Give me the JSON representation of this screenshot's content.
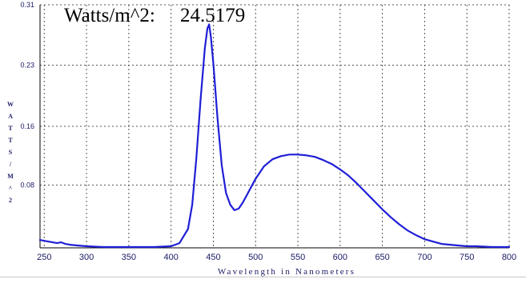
{
  "readout": {
    "label": "Watts/m^2:",
    "value": "24.5179"
  },
  "colors": {
    "curve": "#1f1fd6",
    "grid": "#555555",
    "axis": "#000000",
    "axis_text": "#1a1a66"
  },
  "chart_data": {
    "type": "line",
    "title": "",
    "xlabel": "Wavelength in Nanometers",
    "ylabel": "W A T T S / M ^ 2",
    "xlim": [
      245,
      800
    ],
    "ylim": [
      0,
      0.31
    ],
    "x_ticks": [
      250,
      300,
      350,
      400,
      450,
      500,
      550,
      600,
      650,
      700,
      750,
      800
    ],
    "y_ticks": [
      {
        "value": 0.08,
        "label": "0.08"
      },
      {
        "value": 0.155,
        "label": "0.16"
      },
      {
        "value": 0.233,
        "label": "0.23"
      },
      {
        "value": 0.31,
        "label": "0.31"
      }
    ],
    "grid": true,
    "series": [
      {
        "name": "",
        "x": [
          245,
          250,
          255,
          260,
          265,
          270,
          275,
          280,
          290,
          300,
          320,
          350,
          380,
          400,
          410,
          420,
          425,
          430,
          435,
          440,
          443,
          445,
          447,
          450,
          455,
          460,
          465,
          470,
          475,
          480,
          485,
          490,
          500,
          510,
          520,
          530,
          540,
          550,
          560,
          570,
          580,
          590,
          600,
          610,
          620,
          630,
          640,
          650,
          660,
          670,
          680,
          690,
          700,
          710,
          720,
          730,
          740,
          750,
          760,
          780,
          800
        ],
        "y": [
          0.01,
          0.009,
          0.008,
          0.007,
          0.006,
          0.007,
          0.005,
          0.004,
          0.003,
          0.002,
          0.001,
          0.001,
          0.001,
          0.002,
          0.006,
          0.024,
          0.055,
          0.115,
          0.19,
          0.255,
          0.28,
          0.285,
          0.27,
          0.235,
          0.165,
          0.105,
          0.07,
          0.055,
          0.048,
          0.05,
          0.058,
          0.068,
          0.088,
          0.104,
          0.113,
          0.117,
          0.119,
          0.119,
          0.118,
          0.116,
          0.112,
          0.107,
          0.1,
          0.092,
          0.082,
          0.071,
          0.06,
          0.049,
          0.039,
          0.03,
          0.022,
          0.016,
          0.011,
          0.008,
          0.005,
          0.004,
          0.003,
          0.002,
          0.002,
          0.001,
          0.001
        ]
      }
    ]
  }
}
